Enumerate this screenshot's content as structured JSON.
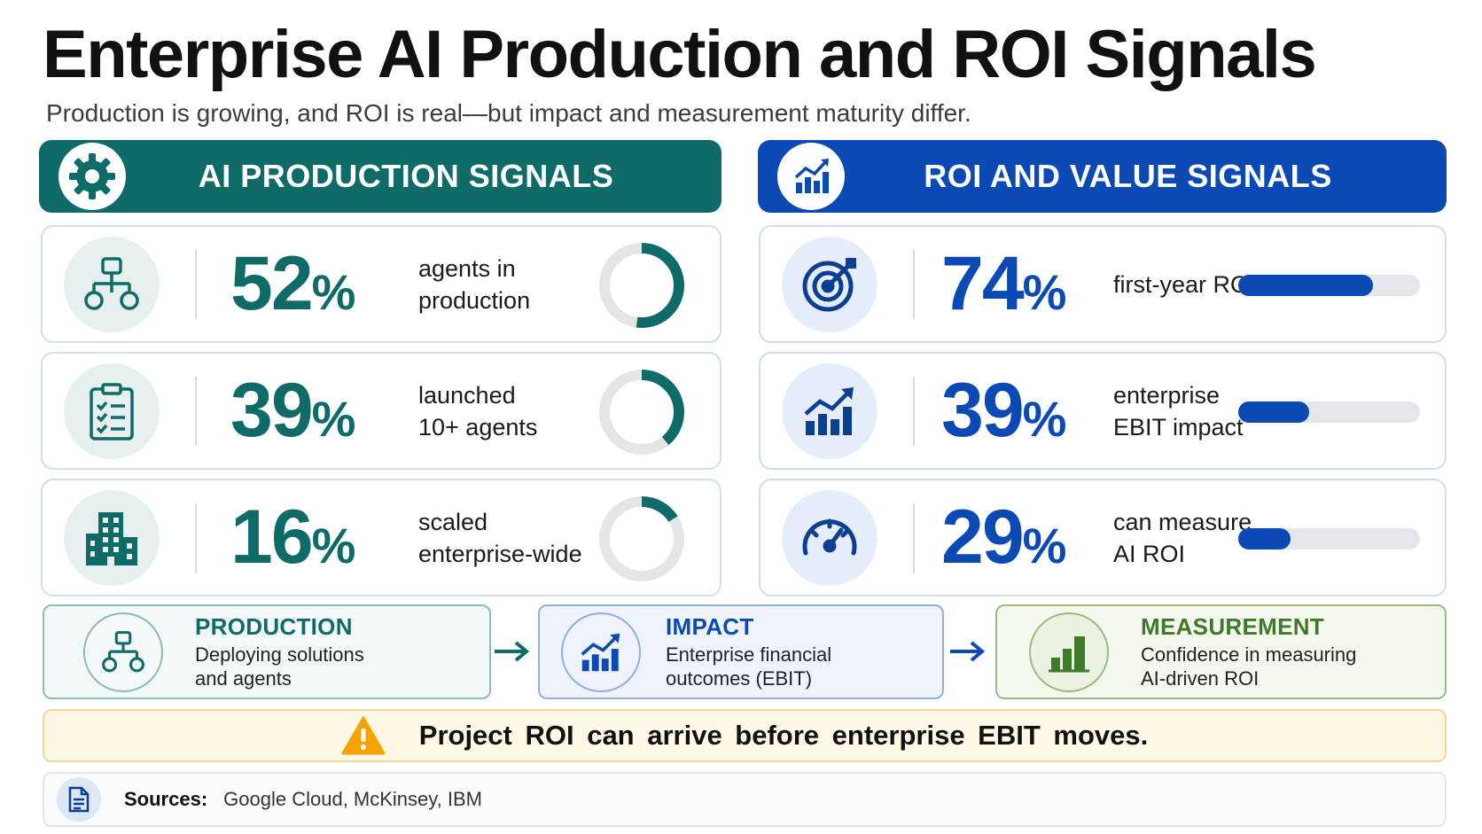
{
  "header": {
    "title": "Enterprise AI Production and ROI Signals",
    "subtitle": "Production is growing, and ROI is real—but impact and measurement maturity differ."
  },
  "production_panel": {
    "heading": "AI PRODUCTION SIGNALS",
    "icon": "gear-icon",
    "accent": "#0f6b68",
    "items": [
      {
        "value": "52",
        "unit": "%",
        "label": "agents in\nproduction",
        "icon": "org-chart-icon",
        "fraction": 0.52
      },
      {
        "value": "39",
        "unit": "%",
        "label": "launched\n10+ agents",
        "icon": "clipboard-checklist-icon",
        "fraction": 0.39
      },
      {
        "value": "16",
        "unit": "%",
        "label": "scaled\nenterprise-wide",
        "icon": "building-icon",
        "fraction": 0.16
      }
    ]
  },
  "roi_panel": {
    "heading": "ROI AND VALUE SIGNALS",
    "icon": "growth-chart-icon",
    "accent": "#0b49b5",
    "items": [
      {
        "value": "74",
        "unit": "%",
        "label": "first-year ROI",
        "icon": "target-icon",
        "fraction": 0.74
      },
      {
        "value": "39",
        "unit": "%",
        "label": "enterprise\nEBIT impact",
        "icon": "growth-chart-icon",
        "fraction": 0.39
      },
      {
        "value": "29",
        "unit": "%",
        "label": "can measure\nAI ROI",
        "icon": "gauge-icon",
        "fraction": 0.29
      }
    ]
  },
  "flow": {
    "steps": [
      {
        "title": "PRODUCTION",
        "desc": "Deploying solutions\nand agents",
        "icon": "org-chart-icon"
      },
      {
        "title": "IMPACT",
        "desc": "Enterprise financial\noutcomes (EBIT)",
        "icon": "growth-chart-icon"
      },
      {
        "title": "MEASUREMENT",
        "desc": "Confidence in measuring\nAI-driven ROI",
        "icon": "bar-chart-icon"
      }
    ]
  },
  "callout": {
    "text": "Project ROI can arrive before enterprise EBIT moves.",
    "icon": "warning-icon"
  },
  "sources": {
    "label": "Sources:",
    "text": "Google Cloud, McKinsey, IBM",
    "icon": "document-icon"
  }
}
